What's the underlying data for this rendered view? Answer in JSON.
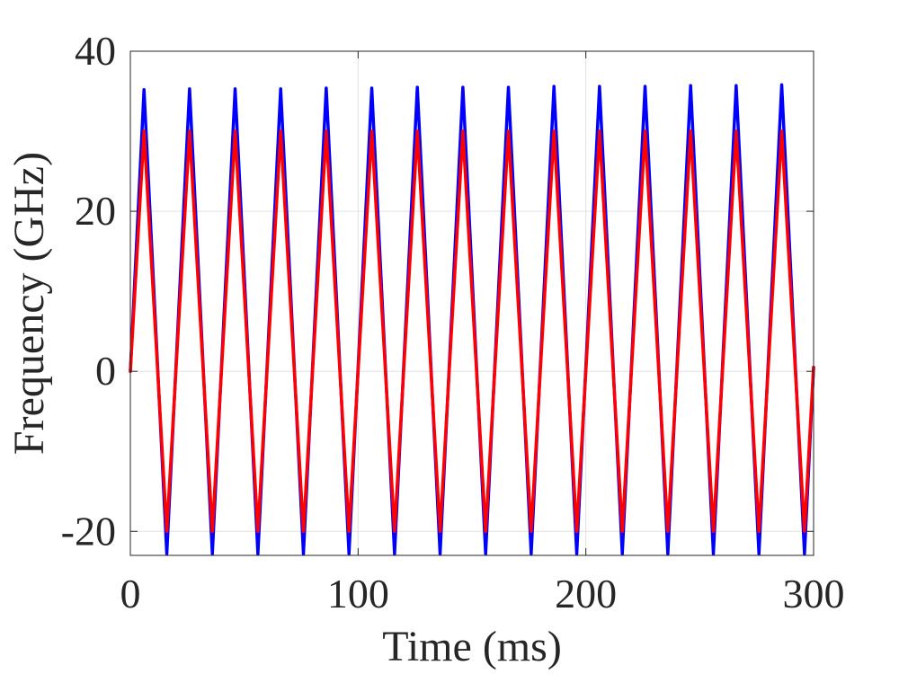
{
  "chart_data": {
    "type": "line",
    "title": "",
    "xlabel": "Time (ms)",
    "ylabel": "Frequency (GHz)",
    "xlim": [
      0,
      300
    ],
    "ylim": [
      -23,
      40
    ],
    "xticks": [
      0,
      100,
      200,
      300
    ],
    "yticks": [
      -20,
      0,
      20,
      40
    ],
    "xtick_labels": [
      "0",
      "100",
      "200",
      "300"
    ],
    "ytick_labels": [
      "-20",
      "0",
      "20",
      "40"
    ],
    "grid": true,
    "legend": "none",
    "series": [
      {
        "color": "#0000ff",
        "x": [
          0,
          6,
          16,
          26,
          36,
          46,
          56,
          66,
          76,
          86,
          96,
          106,
          116,
          126,
          136,
          146,
          156,
          166,
          176,
          186,
          196,
          206,
          216,
          226,
          236,
          246,
          256,
          266,
          276,
          286,
          296,
          300
        ],
        "y": [
          0,
          35.2,
          -22.8,
          35.3,
          -22.8,
          35.3,
          -22.8,
          35.3,
          -22.8,
          35.4,
          -22.8,
          35.4,
          -22.8,
          35.5,
          -22.8,
          35.5,
          -22.8,
          35.5,
          -22.8,
          35.6,
          -22.8,
          35.6,
          -22.8,
          35.6,
          -22.8,
          35.7,
          -22.8,
          35.7,
          -22.8,
          35.8,
          -22.8,
          0.5
        ]
      },
      {
        "color": "#ff0000",
        "x": [
          0,
          6,
          16,
          26,
          36,
          46,
          56,
          66,
          76,
          86,
          96,
          106,
          116,
          126,
          136,
          146,
          156,
          166,
          176,
          186,
          196,
          206,
          216,
          226,
          236,
          246,
          256,
          266,
          276,
          286,
          296,
          300
        ],
        "y": [
          0,
          30,
          -20,
          30,
          -20,
          30,
          -20,
          30,
          -20,
          30,
          -20,
          30,
          -20,
          30,
          -20,
          30,
          -20,
          30,
          -20,
          30,
          -20,
          30,
          -20,
          30,
          -20,
          30,
          -20,
          30,
          -20,
          30,
          -20,
          0.5
        ]
      }
    ]
  }
}
